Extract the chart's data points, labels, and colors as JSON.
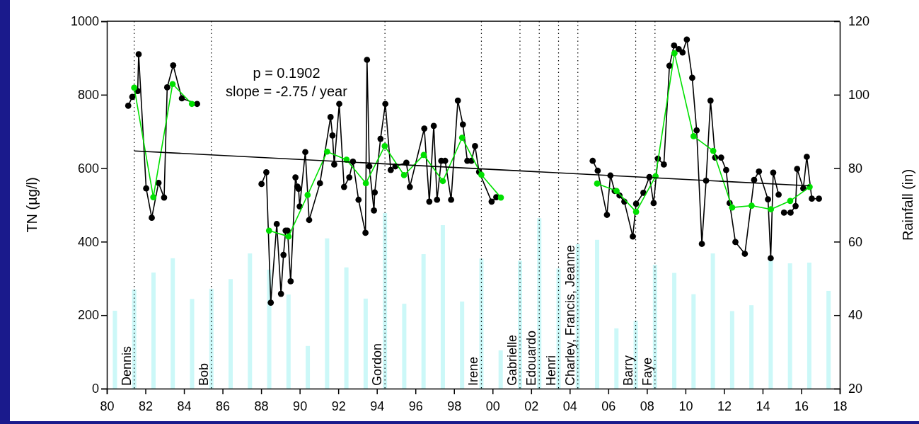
{
  "chart_data": {
    "type": "line",
    "xlabel": null,
    "ylabel": "TN (µg/l)",
    "y2label": "Rainfall (in)",
    "xlim": [
      1980,
      2018
    ],
    "xticks": [
      {
        "value": 1980,
        "label": "80"
      },
      {
        "value": 1982,
        "label": "82"
      },
      {
        "value": 1984,
        "label": "84"
      },
      {
        "value": 1986,
        "label": "86"
      },
      {
        "value": 1988,
        "label": "88"
      },
      {
        "value": 1990,
        "label": "90"
      },
      {
        "value": 1992,
        "label": "92"
      },
      {
        "value": 1994,
        "label": "94"
      },
      {
        "value": 1996,
        "label": "96"
      },
      {
        "value": 1998,
        "label": "98"
      },
      {
        "value": 2000,
        "label": "00"
      },
      {
        "value": 2002,
        "label": "02"
      },
      {
        "value": 2004,
        "label": "04"
      },
      {
        "value": 2006,
        "label": "06"
      },
      {
        "value": 2008,
        "label": "08"
      },
      {
        "value": 2010,
        "label": "10"
      },
      {
        "value": 2012,
        "label": "12"
      },
      {
        "value": 2014,
        "label": "14"
      },
      {
        "value": 2016,
        "label": "16"
      },
      {
        "value": 2018,
        "label": "18"
      }
    ],
    "ylim": [
      0,
      1000
    ],
    "yticks": [
      0,
      200,
      400,
      600,
      800,
      1000
    ],
    "y2lim": [
      20,
      120
    ],
    "y2ticks": [
      20,
      40,
      60,
      80,
      100,
      120
    ],
    "series": [
      {
        "type": "bar",
        "axis": "y2",
        "color": "#ccf8f8",
        "x": [
          1980.42,
          1981.42,
          1982.42,
          1983.42,
          1984.42,
          1985.42,
          1986.42,
          1987.42,
          1988.42,
          1989.42,
          1990.42,
          1991.42,
          1992.42,
          1993.42,
          1994.42,
          1995.42,
          1996.42,
          1997.42,
          1998.42,
          1999.42,
          2000.42,
          2001.42,
          2002.42,
          2003.42,
          2004.42,
          2005.42,
          2006.42,
          2007.42,
          2008.42,
          2009.42,
          2010.42,
          2011.42,
          2012.42,
          2013.42,
          2014.42,
          2015.42,
          2016.42,
          2017.42
        ],
        "values": [
          41.2,
          47,
          51.6,
          55.5,
          44.4,
          47.2,
          49.8,
          56.8,
          52.4,
          45.6,
          31.6,
          60.9,
          53,
          44.5,
          67.8,
          43.1,
          56.6,
          64.5,
          43.7,
          55.4,
          30.4,
          54.8,
          66.4,
          52.7,
          59.3,
          60.5,
          36.4,
          38.5,
          53.7,
          51.5,
          45.7,
          56.8,
          41.1,
          42.7,
          55.3,
          54.1,
          54.3,
          46.6
        ]
      },
      {
        "color": "#000000",
        "marker": "circle",
        "x": [
          1981.11,
          1981.32,
          1981.6,
          1981.65,
          1982.04,
          1982.33,
          1982.68,
          1982.97,
          1983.13,
          1983.44,
          1983.89,
          1984.68,
          1986,
          1988.02,
          1988.27,
          1988.5,
          1988.81,
          1989.03,
          1989.16,
          1989.27,
          1989.37,
          1989.53,
          1989.78,
          1989.88,
          1989.94,
          1990,
          1990.29,
          1990.49,
          1991.05,
          1991.6,
          1991.7,
          1991.79,
          1992.05,
          1992.3,
          1992.57,
          1992.76,
          1993.05,
          1993.41,
          1993.49,
          1993.61,
          1993.85,
          1993.89,
          1994.19,
          1994.44,
          1994.72,
          1994.96,
          1995.53,
          1995.71,
          1996.46,
          1996.72,
          1996.95,
          1997.12,
          1997.34,
          1997.54,
          1997.85,
          1998.2,
          1998.46,
          1998.69,
          1998.9,
          1999.09,
          1999.3,
          1999.95,
          2000.19,
          2002,
          2005.19,
          2005.45,
          2005.93,
          2006.11,
          2006.33,
          2006.58,
          2006.83,
          2007.27,
          2007.44,
          2007.82,
          2008.13,
          2008.35,
          2008.57,
          2008.88,
          2009.17,
          2009.41,
          2009.65,
          2009.85,
          2010.07,
          2010.35,
          2010.58,
          2010.85,
          2011.07,
          2011.3,
          2011.54,
          2011.85,
          2012.11,
          2012.29,
          2012.59,
          2013.08,
          2013.56,
          2013.81,
          2014.28,
          2014.42,
          2014.55,
          2014.83,
          2014.97,
          2015.11,
          2015.45,
          2015.71,
          2015.79,
          2016.11,
          2016.29,
          2016.55,
          2016.92
        ],
        "values": [
          770,
          794,
          810,
          910,
          545,
          465,
          560,
          520,
          820,
          880,
          790,
          775,
          null,
          557,
          589,
          234,
          448,
          258,
          364,
          430,
          430,
          292,
          575,
          550,
          544,
          496,
          644,
          459,
          559,
          739,
          689,
          610,
          775,
          549,
          575,
          618,
          514,
          424,
          895,
          605,
          485,
          534,
          680,
          775,
          595,
          605,
          615,
          549,
          708,
          509,
          715,
          514,
          620,
          620,
          514,
          784,
          719,
          620,
          620,
          660,
          590,
          509,
          521,
          null,
          620,
          593,
          473,
          580,
          538,
          526,
          509,
          414,
          503,
          533,
          576,
          505,
          626,
          610,
          879,
          934,
          924,
          915,
          950,
          846,
          703,
          394,
          566,
          784,
          629,
          629,
          595,
          505,
          399,
          367,
          568,
          591,
          515,
          355,
          588,
          528,
          null,
          479,
          479,
          497,
          598,
          545,
          631,
          517,
          517
        ]
      },
      {
        "color": "#00e000",
        "marker": "circle",
        "x": [
          1981.42,
          1982.41,
          1983.41,
          1984.41,
          1985.4,
          1988.41,
          1989.42,
          1990.41,
          1991.42,
          1992.43,
          1993.43,
          1994.41,
          1995.41,
          1996.43,
          1997.42,
          1998.42,
          1999.42,
          2000.43,
          2003,
          2005.42,
          2006.43,
          2007.44,
          2008.45,
          2009.43,
          2010.42,
          2011.44,
          2012.42,
          2013.43,
          2014.43,
          2015.43,
          2016.44
        ],
        "values": [
          819,
          521,
          829,
          775,
          null,
          430,
          414,
          527,
          645,
          623,
          559,
          660,
          581,
          636,
          565,
          683,
          582,
          520,
          null,
          558,
          538,
          481,
          578,
          913,
          687,
          647,
          493,
          498,
          488,
          511,
          549
        ]
      },
      {
        "color": "#000000",
        "marker": "none",
        "x": [
          1981.42,
          2016.44
        ],
        "values": [
          647,
          552
        ]
      }
    ],
    "ref_lines": [
      {
        "axis": "x",
        "value": 1981.42,
        "label": "Dennis",
        "line_style": "dotted"
      },
      {
        "axis": "x",
        "value": 1985.42,
        "label": "Bob",
        "line_style": "dotted"
      },
      {
        "axis": "x",
        "value": 1994.42,
        "label": "Gordon",
        "line_style": "dotted"
      },
      {
        "axis": "x",
        "value": 1999.42,
        "label": "Irene",
        "line_style": "dotted"
      },
      {
        "axis": "x",
        "value": 2001.42,
        "label": "Gabrielle",
        "line_style": "dotted"
      },
      {
        "axis": "x",
        "value": 2002.42,
        "label": "Edouardo",
        "line_style": "dotted"
      },
      {
        "axis": "x",
        "value": 2003.42,
        "label": "Henri",
        "line_style": "dotted"
      },
      {
        "axis": "x",
        "value": 2004.42,
        "label": "Charley, Francis, Jeanne",
        "line_style": "dotted"
      },
      {
        "axis": "x",
        "value": 2007.42,
        "label": "Barry",
        "line_style": "dotted"
      },
      {
        "axis": "x",
        "value": 2008.42,
        "label": "Faye",
        "line_style": "dotted"
      }
    ],
    "annotations": [
      "p = 0.1902",
      "slope = -2.75 / year"
    ]
  }
}
